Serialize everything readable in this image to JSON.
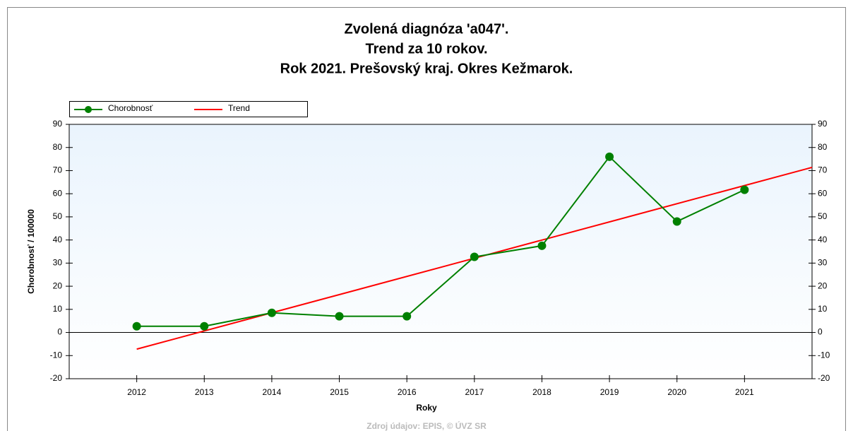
{
  "chart_data": {
    "type": "line",
    "title": [
      "Zvolená diagnóza 'a047'.",
      "Trend za 10 rokov.",
      "Rok 2021. Prešovský kraj. Okres Kežmarok."
    ],
    "x_label": "Roky",
    "y_label": "Chorobnosť / 100000",
    "source": "Zdroj údajov: EPIS, © ÚVZ SR",
    "xlim": [
      2011,
      2022
    ],
    "xticks": [
      2012,
      2013,
      2014,
      2015,
      2016,
      2017,
      2018,
      2019,
      2020,
      2021
    ],
    "ylim": [
      -20,
      90
    ],
    "yticks": [
      -20,
      -10,
      0,
      10,
      20,
      30,
      40,
      50,
      60,
      70,
      80,
      90
    ],
    "y2lim": [
      -20,
      90
    ],
    "y2ticks": [
      -20,
      -10,
      0,
      10,
      20,
      30,
      40,
      50,
      60,
      70,
      80,
      90
    ],
    "series": [
      {
        "name": "Chorobnosť",
        "color": "#008000",
        "markers": true,
        "x": [
          2012,
          2013,
          2014,
          2015,
          2016,
          2017,
          2018,
          2019,
          2020,
          2021
        ],
        "values": [
          2.7,
          2.7,
          8.5,
          7,
          7,
          32.7,
          37.5,
          76,
          48,
          61.7
        ]
      },
      {
        "name": "Trend",
        "color": "#ff0000",
        "markers": false,
        "x": [
          2012,
          2022
        ],
        "values": [
          -7.2,
          71.4
        ]
      }
    ]
  }
}
